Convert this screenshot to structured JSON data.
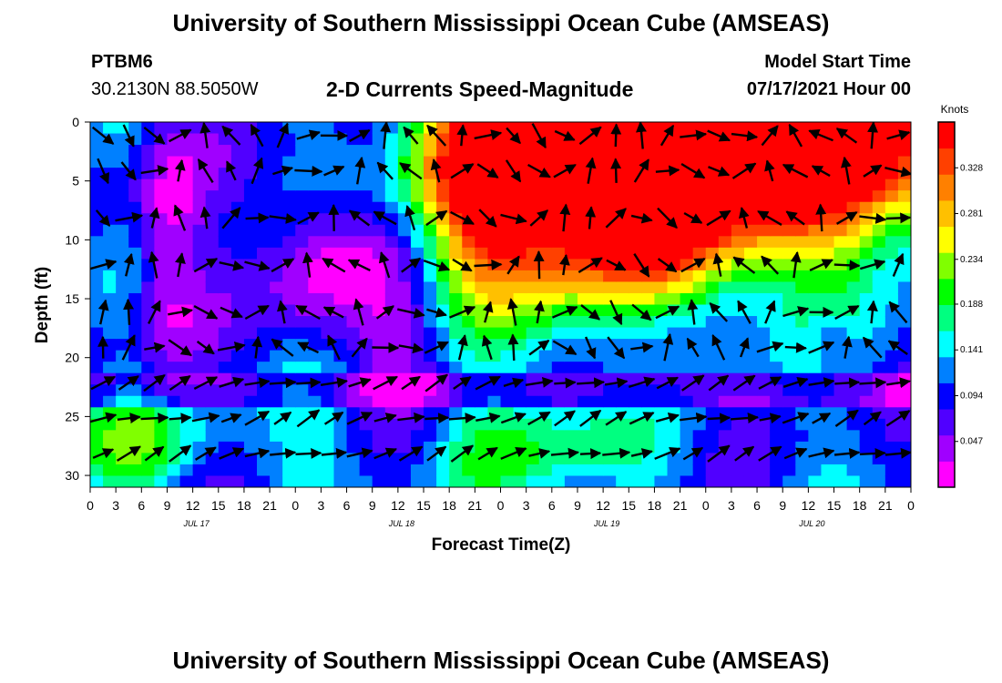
{
  "header": {
    "title_top": "University of Southern Mississippi Ocean Cube (AMSEAS)",
    "station": "PTBM6",
    "coords": "30.2130N  88.5050W",
    "plot_title": "2-D Currents Speed-Magnitude",
    "model_start_label": "Model Start Time",
    "model_start_value": "07/17/2021 Hour 00",
    "title_bottom": "University of Southern Mississippi Ocean Cube (AMSEAS)"
  },
  "chart_data": {
    "type": "heatmap",
    "xlabel": "Forecast Time(Z)",
    "ylabel": "Depth (ft)",
    "x_ticks": [
      "0",
      "3",
      "6",
      "9",
      "12",
      "15",
      "18",
      "21",
      "0",
      "3",
      "6",
      "9",
      "12",
      "15",
      "18",
      "21",
      "0",
      "3",
      "6",
      "9",
      "12",
      "15",
      "18",
      "21",
      "0",
      "3",
      "6",
      "9",
      "12",
      "15",
      "18",
      "21",
      "0"
    ],
    "x_range_hours": [
      0,
      96
    ],
    "date_labels": [
      {
        "label": "JUL 17",
        "hour": 12
      },
      {
        "label": "JUL 18",
        "hour": 36
      },
      {
        "label": "JUL 19",
        "hour": 60
      },
      {
        "label": "JUL 20",
        "hour": 84
      }
    ],
    "y_ticks": [
      0,
      5,
      10,
      15,
      20,
      25,
      30
    ],
    "y_range": [
      0,
      31
    ],
    "colorbar": {
      "unit": "Knots",
      "tick_labels": [
        "0.328",
        "0.281",
        "0.234",
        "0.188",
        "0.141",
        "0.094",
        "0.047"
      ],
      "range": [
        0,
        0.375
      ]
    },
    "colormap": [
      "#ff00ff",
      "#a000ff",
      "#5000ff",
      "#0000ff",
      "#0080ff",
      "#00ffff",
      "#00ff80",
      "#00ff00",
      "#80ff00",
      "#ffff00",
      "#ffc000",
      "#ff8000",
      "#ff4000",
      "#ff0000"
    ],
    "grid": false
  }
}
